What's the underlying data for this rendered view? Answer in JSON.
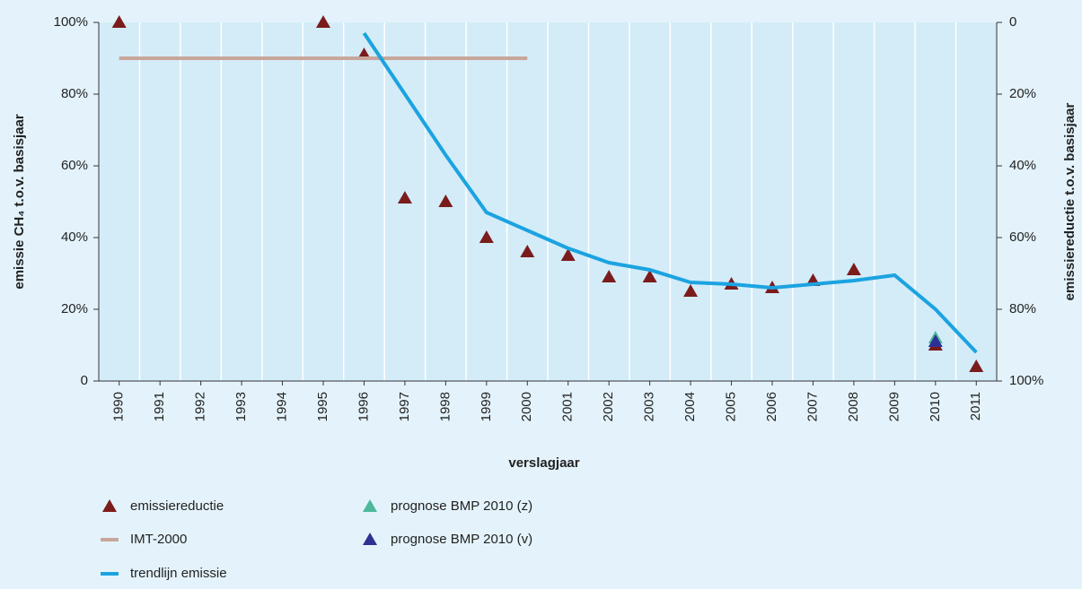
{
  "chart_data": {
    "type": "combo",
    "xlabel": "verslagjaar",
    "ylabel": "emissie CH₄ t.o.v. basisjaar",
    "y2label": "emissiereductie t.o.v. basisjaar",
    "categories": [
      "1990",
      "1991",
      "1992",
      "1993",
      "1994",
      "1995",
      "1996",
      "1997",
      "1998",
      "1999",
      "2000",
      "2001",
      "2002",
      "2003",
      "2004",
      "2005",
      "2006",
      "2007",
      "2008",
      "2009",
      "2010",
      "2011"
    ],
    "ylim": [
      0,
      100
    ],
    "yticks": [
      0,
      {
        "value": 20,
        "label": "20%"
      },
      {
        "value": 40,
        "label": "40%"
      },
      {
        "value": 60,
        "label": "60%"
      },
      {
        "value": 80,
        "label": "80%"
      },
      {
        "value": 100,
        "label": "100%"
      }
    ],
    "y2lim": [
      100,
      0
    ],
    "y2ticks": [
      0,
      {
        "value": 20,
        "label": "20%"
      },
      {
        "value": 40,
        "label": "40%"
      },
      {
        "value": 60,
        "label": "60%"
      },
      {
        "value": 80,
        "label": "80%"
      },
      {
        "value": 100,
        "label": "100%"
      }
    ],
    "grid": true,
    "series": [
      {
        "name": "emissiereductie",
        "kind": "marker",
        "axis": "y2",
        "color": "#7b1c1c",
        "values": [
          0,
          null,
          null,
          null,
          null,
          0,
          9,
          49,
          50,
          60,
          64,
          65,
          71,
          71,
          75,
          73,
          74,
          72,
          69,
          null,
          90,
          96
        ]
      },
      {
        "name": "prognose BMP 2010 (z)",
        "kind": "marker",
        "axis": "y2",
        "color": "#4db89a",
        "values": [
          null,
          null,
          null,
          null,
          null,
          null,
          null,
          null,
          null,
          null,
          null,
          null,
          null,
          null,
          null,
          null,
          null,
          null,
          null,
          null,
          88,
          null
        ]
      },
      {
        "name": "IMT-2000",
        "kind": "line",
        "color": "#c8a69c",
        "values": [
          90,
          90,
          90,
          90,
          90,
          90,
          90,
          90,
          90,
          90,
          90,
          null,
          null,
          null,
          null,
          null,
          null,
          null,
          null,
          null,
          null,
          null
        ]
      },
      {
        "name": "prognose BMP 2010 (v)",
        "kind": "marker",
        "axis": "y2",
        "color": "#2e3192",
        "values": [
          null,
          null,
          null,
          null,
          null,
          null,
          null,
          null,
          null,
          null,
          null,
          null,
          null,
          null,
          null,
          null,
          null,
          null,
          null,
          null,
          89,
          null
        ]
      },
      {
        "name": "trendlijn emissie",
        "kind": "line",
        "color": "#1ba3e0",
        "values": [
          null,
          null,
          null,
          null,
          null,
          null,
          97,
          80,
          63,
          47,
          42,
          37,
          33,
          31,
          27.5,
          27,
          26,
          27,
          28,
          29.5,
          20,
          8
        ]
      }
    ]
  }
}
